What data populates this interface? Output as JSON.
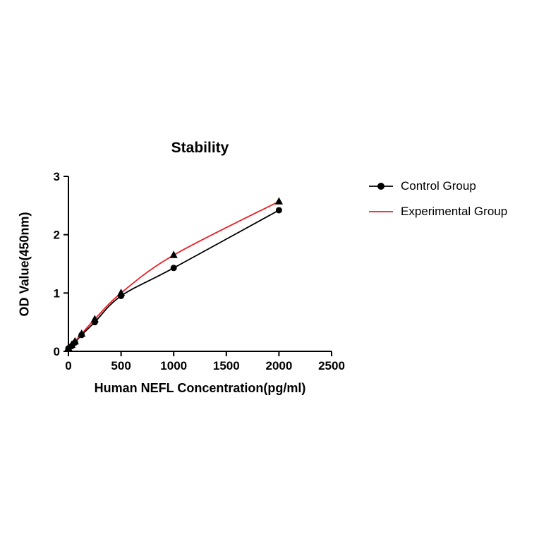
{
  "figure": {
    "background_color": "#ffffff",
    "accent_red": "#ed1c24",
    "line_black": "#000000"
  },
  "chart_data": {
    "type": "line",
    "title": "Stability",
    "xlabel": "Human NEFL Concentration(pg/ml)",
    "ylabel": "OD Value(450nm)",
    "xlim": [
      0,
      2500
    ],
    "ylim": [
      0,
      3
    ],
    "x_ticks": [
      0,
      500,
      1000,
      1500,
      2000,
      2500
    ],
    "y_ticks": [
      0,
      1,
      2,
      3
    ],
    "grid": false,
    "legend_position": "right",
    "series": [
      {
        "name": "Control Group",
        "color": "#000000",
        "marker": "circle",
        "marker_color": "#000000",
        "x": [
          0,
          31,
          62,
          125,
          250,
          500,
          1000,
          2000
        ],
        "y": [
          0.05,
          0.09,
          0.15,
          0.28,
          0.5,
          0.95,
          1.43,
          2.42
        ]
      },
      {
        "name": "Experimental Group",
        "color": "#ed1c24",
        "marker": "triangle",
        "marker_color": "#000000",
        "x": [
          0,
          31,
          62,
          125,
          250,
          500,
          1000,
          2000
        ],
        "y": [
          0.06,
          0.11,
          0.17,
          0.3,
          0.55,
          1.0,
          1.65,
          2.57
        ]
      }
    ]
  }
}
